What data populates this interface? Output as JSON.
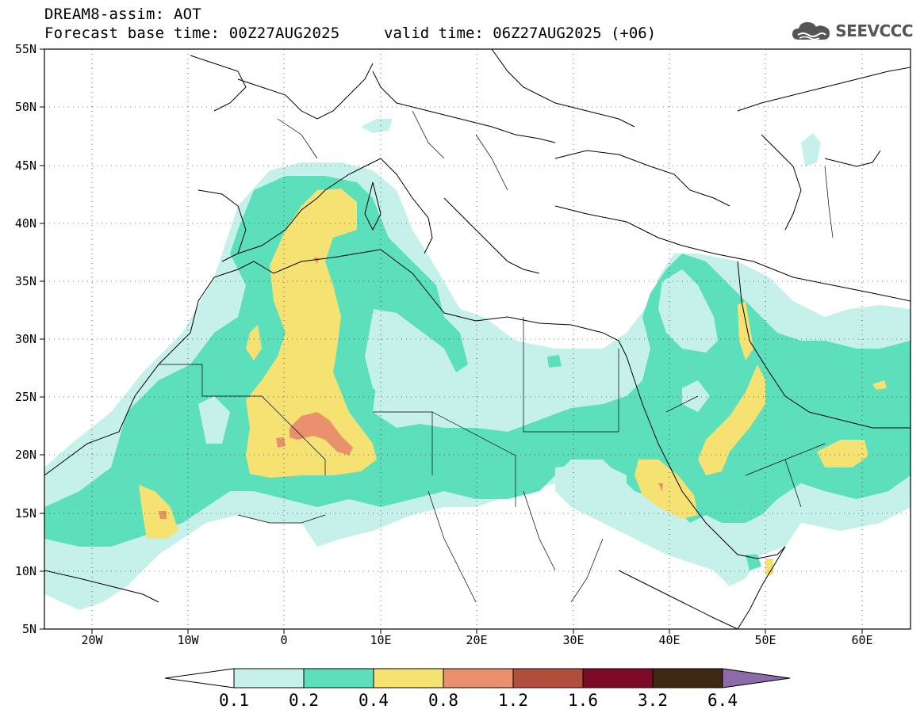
{
  "header": {
    "title": "DREAM8-assim: AOT",
    "base_time": "Forecast base time: 00Z27AUG2025",
    "valid_time": "valid time: 06Z27AUG2025 (+06)"
  },
  "logo": {
    "text": "SEEVCCC",
    "icon": "cloud-icon"
  },
  "map": {
    "lon_range": [
      -25,
      65
    ],
    "lat_range": [
      5,
      55
    ],
    "lat_ticks": [
      "55N",
      "50N",
      "45N",
      "40N",
      "35N",
      "30N",
      "25N",
      "20N",
      "15N",
      "10N",
      "5N"
    ],
    "lon_ticks": [
      "20W",
      "10W",
      "0",
      "10E",
      "20E",
      "30E",
      "40E",
      "50E",
      "60E"
    ],
    "grid": "dotted"
  },
  "colorbar": {
    "labels": [
      "0.1",
      "0.2",
      "0.4",
      "0.8",
      "1.2",
      "1.6",
      "3.2",
      "6.4"
    ],
    "colors": [
      "#ffffff",
      "#c6f1eb",
      "#5ce0bc",
      "#f5e273",
      "#e9906c",
      "#b14e3c",
      "#7d0b28",
      "#3f2814",
      "#8c6ba8"
    ]
  }
}
